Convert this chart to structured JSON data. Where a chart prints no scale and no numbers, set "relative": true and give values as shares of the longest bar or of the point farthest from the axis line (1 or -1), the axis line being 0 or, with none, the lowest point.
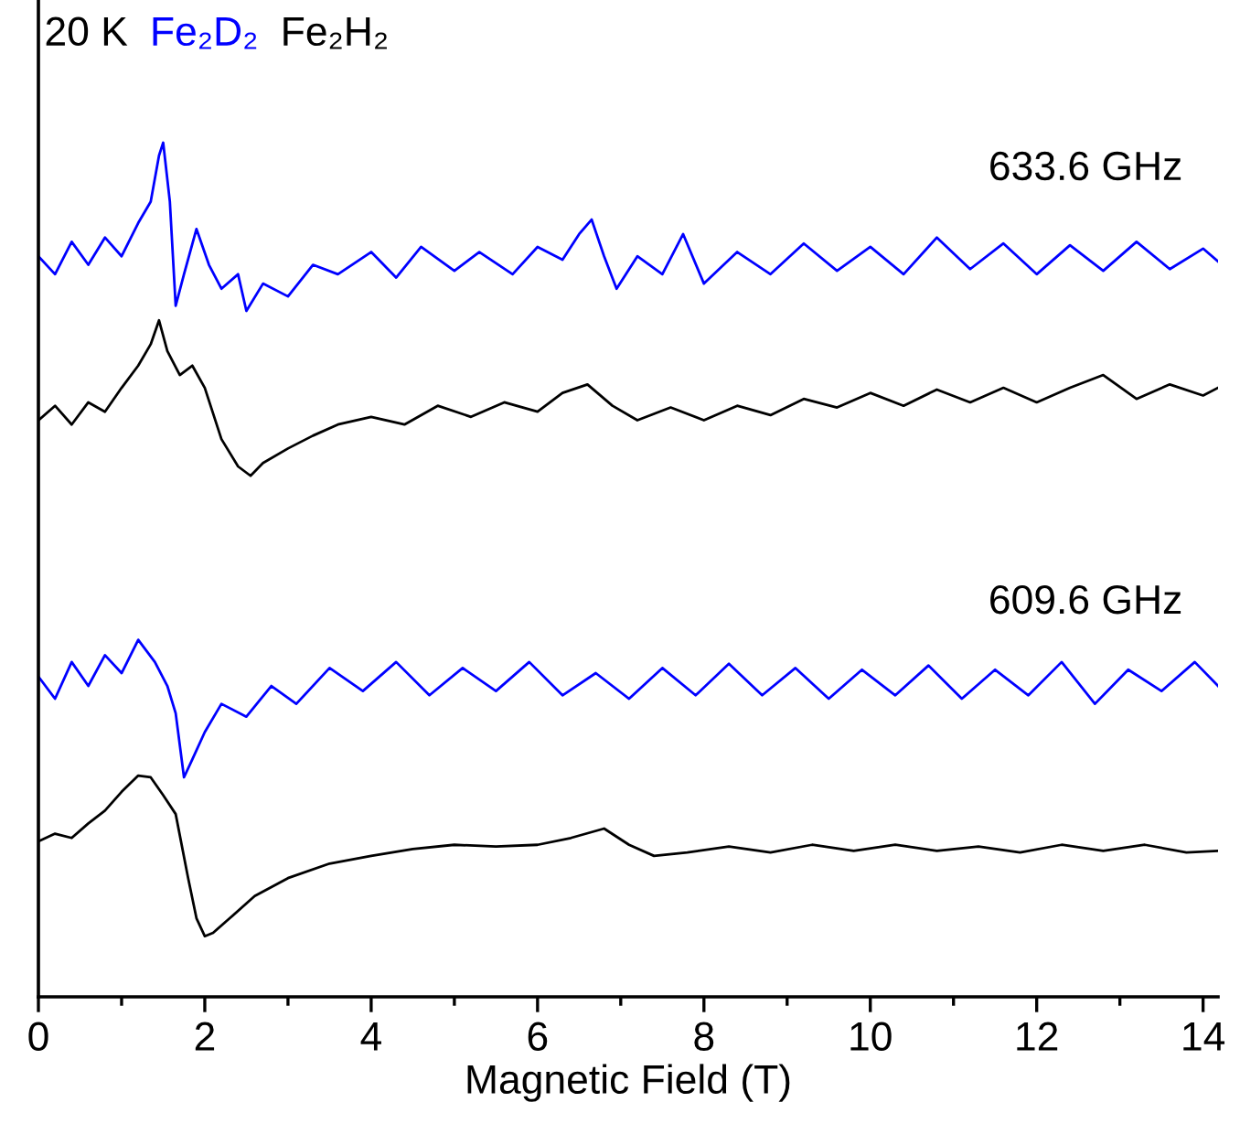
{
  "chart_data": {
    "type": "line",
    "relative": true,
    "xlabel": "Magnetic Field (T)",
    "xlim": [
      0,
      14.18
    ],
    "xticks": [
      0,
      {
        "value": 1,
        "label": null
      },
      2,
      {
        "value": 3,
        "label": null
      },
      4,
      {
        "value": 5,
        "label": null
      },
      6,
      {
        "value": 7,
        "label": null
      },
      8,
      {
        "value": 9,
        "label": null
      },
      10,
      {
        "value": 11,
        "label": null
      },
      12,
      {
        "value": 13,
        "label": null
      },
      14
    ],
    "tick_labels": "x",
    "annotations": [
      "20 K",
      "633.6 GHz",
      "609.6 GHz"
    ],
    "series": [
      {
        "name": "Fe₂D₂",
        "color": "#0000ff",
        "x": [
          0,
          0.2,
          0.4,
          0.6,
          0.8,
          1.0,
          1.2,
          1.35,
          1.45,
          1.5,
          1.58,
          1.65,
          1.75,
          1.9,
          2.05,
          2.2,
          2.4,
          2.5,
          2.7,
          3.0,
          3.3,
          3.6,
          4.0,
          4.3,
          4.6,
          5.0,
          5.3,
          5.7,
          6.0,
          6.3,
          6.5,
          6.65,
          6.8,
          6.95,
          7.2,
          7.5,
          7.75,
          8.0,
          8.4,
          8.8,
          9.2,
          9.6,
          10.0,
          10.4,
          10.8,
          11.2,
          11.6,
          12.0,
          12.4,
          12.8,
          13.2,
          13.6,
          14.0,
          14.18
        ],
        "values": [
          0.867,
          0.846,
          0.884,
          0.857,
          0.889,
          0.867,
          0.906,
          0.931,
          0.985,
          1.0,
          0.931,
          0.809,
          0.846,
          0.899,
          0.857,
          0.829,
          0.846,
          0.803,
          0.835,
          0.82,
          0.857,
          0.846,
          0.872,
          0.842,
          0.878,
          0.85,
          0.872,
          0.846,
          0.878,
          0.863,
          0.893,
          0.91,
          0.867,
          0.829,
          0.867,
          0.846,
          0.893,
          0.835,
          0.872,
          0.846,
          0.882,
          0.85,
          0.878,
          0.846,
          0.889,
          0.852,
          0.882,
          0.846,
          0.88,
          0.85,
          0.884,
          0.852,
          0.876,
          0.861
        ]
      },
      {
        "name": "Fe₂H₂",
        "color": "#000000",
        "x": [
          0,
          0.2,
          0.4,
          0.6,
          0.8,
          1.0,
          1.2,
          1.35,
          1.45,
          1.55,
          1.7,
          1.85,
          2.0,
          2.2,
          2.4,
          2.55,
          2.7,
          3.0,
          3.3,
          3.6,
          4.0,
          4.4,
          4.8,
          5.2,
          5.6,
          6.0,
          6.3,
          6.6,
          6.9,
          7.2,
          7.6,
          8.0,
          8.4,
          8.8,
          9.2,
          9.6,
          10.0,
          10.4,
          10.8,
          11.2,
          11.6,
          12.0,
          12.4,
          12.8,
          13.2,
          13.6,
          14.0,
          14.18
        ],
        "values": [
          0.675,
          0.692,
          0.67,
          0.696,
          0.685,
          0.713,
          0.739,
          0.764,
          0.792,
          0.756,
          0.728,
          0.739,
          0.713,
          0.653,
          0.621,
          0.61,
          0.625,
          0.642,
          0.657,
          0.67,
          0.679,
          0.67,
          0.692,
          0.679,
          0.696,
          0.685,
          0.707,
          0.717,
          0.692,
          0.675,
          0.69,
          0.675,
          0.692,
          0.681,
          0.7,
          0.69,
          0.707,
          0.692,
          0.711,
          0.696,
          0.713,
          0.696,
          0.713,
          0.728,
          0.7,
          0.717,
          0.704,
          0.713
        ]
      },
      {
        "color": "#0000ff",
        "x": [
          0,
          0.2,
          0.4,
          0.6,
          0.8,
          1.0,
          1.2,
          1.4,
          1.55,
          1.65,
          1.75,
          1.85,
          2.0,
          2.2,
          2.5,
          2.8,
          3.1,
          3.5,
          3.9,
          4.3,
          4.7,
          5.1,
          5.5,
          5.9,
          6.3,
          6.7,
          7.1,
          7.5,
          7.9,
          8.3,
          8.7,
          9.1,
          9.5,
          9.9,
          10.3,
          10.7,
          11.1,
          11.5,
          11.9,
          12.3,
          12.7,
          13.1,
          13.5,
          13.9,
          14.18
        ],
        "values": [
          0.375,
          0.349,
          0.392,
          0.364,
          0.4,
          0.379,
          0.418,
          0.392,
          0.364,
          0.332,
          0.257,
          0.278,
          0.31,
          0.343,
          0.328,
          0.364,
          0.343,
          0.385,
          0.358,
          0.392,
          0.353,
          0.385,
          0.358,
          0.392,
          0.353,
          0.379,
          0.349,
          0.385,
          0.353,
          0.39,
          0.353,
          0.385,
          0.349,
          0.383,
          0.353,
          0.388,
          0.349,
          0.383,
          0.353,
          0.392,
          0.343,
          0.383,
          0.358,
          0.392,
          0.364
        ]
      },
      {
        "color": "#000000",
        "x": [
          0,
          0.2,
          0.4,
          0.6,
          0.8,
          1.0,
          1.2,
          1.35,
          1.5,
          1.65,
          1.8,
          1.9,
          2.0,
          2.1,
          2.3,
          2.6,
          3.0,
          3.5,
          4.0,
          4.5,
          5.0,
          5.5,
          6.0,
          6.4,
          6.8,
          7.1,
          7.4,
          7.8,
          8.3,
          8.8,
          9.3,
          9.8,
          10.3,
          10.8,
          11.3,
          11.8,
          12.3,
          12.8,
          13.3,
          13.8,
          14.18
        ],
        "values": [
          0.182,
          0.191,
          0.186,
          0.203,
          0.218,
          0.24,
          0.259,
          0.257,
          0.236,
          0.214,
          0.139,
          0.092,
          0.071,
          0.075,
          0.092,
          0.118,
          0.139,
          0.156,
          0.165,
          0.173,
          0.178,
          0.176,
          0.178,
          0.186,
          0.197,
          0.178,
          0.165,
          0.169,
          0.176,
          0.169,
          0.178,
          0.171,
          0.178,
          0.171,
          0.176,
          0.169,
          0.178,
          0.171,
          0.178,
          0.169,
          0.171
        ]
      }
    ]
  }
}
